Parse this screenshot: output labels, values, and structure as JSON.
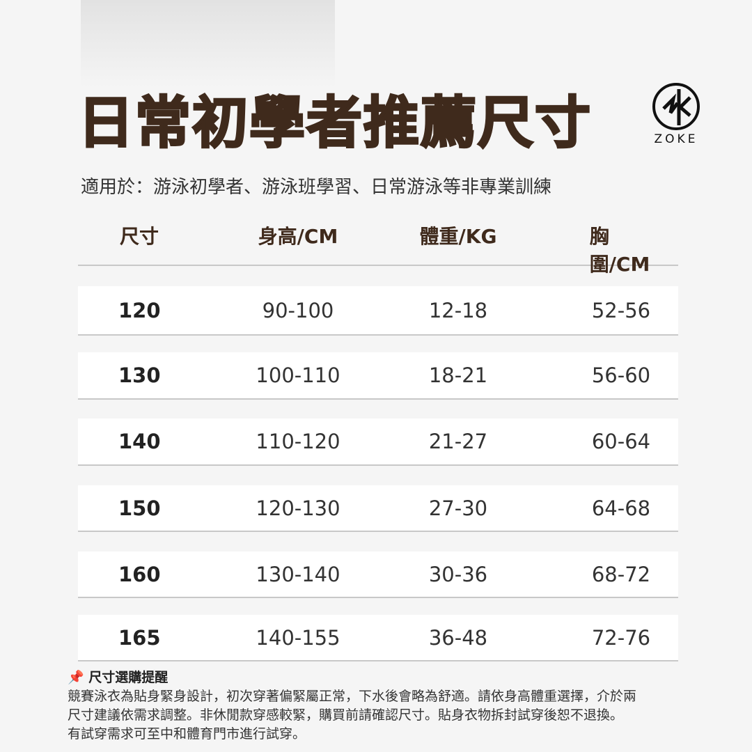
{
  "title": "日常初學者推薦尺寸",
  "logo": {
    "text": "ZOKE"
  },
  "subtitle": "適用於：游泳初學者、游泳班學習、日常游泳等非專業訓練",
  "table": {
    "headers": [
      "尺寸",
      "身高/CM",
      "體重/KG",
      "胸圍/CM"
    ],
    "rows": [
      [
        "120",
        "90-100",
        "12-18",
        "52-56"
      ],
      [
        "130",
        "100-110",
        "18-21",
        "56-60"
      ],
      [
        "140",
        "110-120",
        "21-27",
        "60-64"
      ],
      [
        "150",
        "120-130",
        "27-30",
        "64-68"
      ],
      [
        "160",
        "130-140",
        "30-36",
        "68-72"
      ],
      [
        "165",
        "140-155",
        "36-48",
        "72-76"
      ]
    ]
  },
  "note": {
    "icon": "pushpin-icon",
    "title": "尺寸選購提醒",
    "lines": [
      "競賽泳衣為貼身緊身設計，初次穿著偏緊屬正常，下水後會略為舒適。請依身高體重選擇，介於兩",
      "尺寸建議依需求調整。非休閒款穿感較緊，購買前請確認尺寸。貼身衣物拆封試穿後恕不退換。",
      "有試穿需求可至中和體育門市進行試穿。"
    ]
  },
  "colors": {
    "title": "#3f2a1c",
    "background": "#f5f5f5"
  }
}
